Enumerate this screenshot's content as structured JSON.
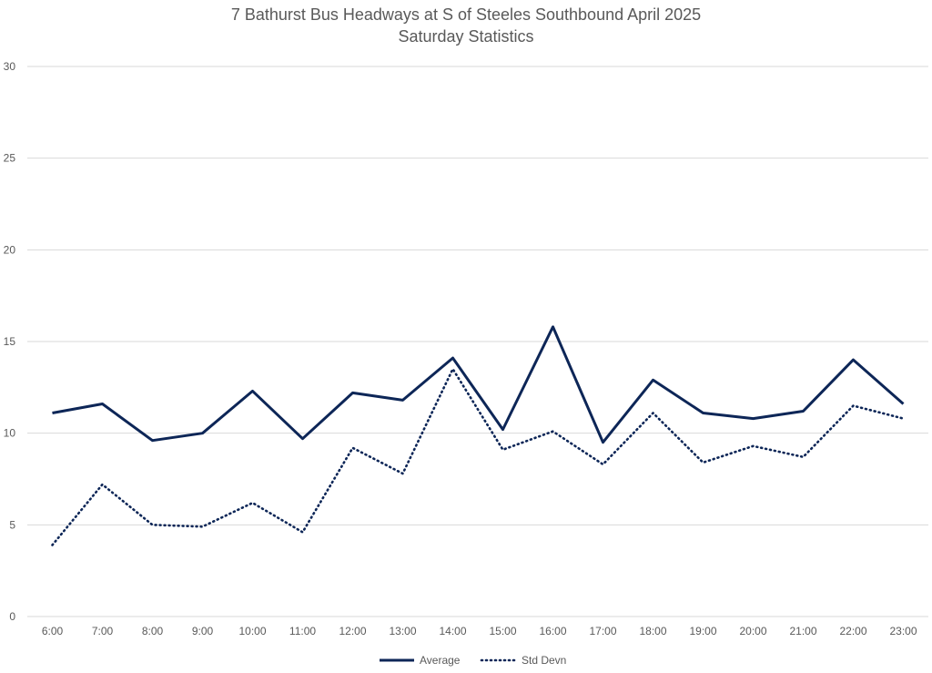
{
  "chart_data": {
    "type": "line",
    "title": "7 Bathurst Bus Headways at S of Steeles Southbound April 2025",
    "subtitle": "Saturday Statistics",
    "xlabel": "",
    "ylabel": "",
    "categories": [
      "6:00",
      "7:00",
      "8:00",
      "9:00",
      "10:00",
      "11:00",
      "12:00",
      "13:00",
      "14:00",
      "15:00",
      "16:00",
      "17:00",
      "18:00",
      "19:00",
      "20:00",
      "21:00",
      "22:00",
      "23:00"
    ],
    "ylim": [
      0,
      30
    ],
    "yticks": [
      0,
      5,
      10,
      15,
      20,
      25,
      30
    ],
    "grid": true,
    "legend": "bottom",
    "series": [
      {
        "name": "Average",
        "style": "solid",
        "color": "#0d2657",
        "values": [
          11.1,
          11.6,
          9.6,
          10.0,
          12.3,
          9.7,
          12.2,
          11.8,
          14.1,
          10.2,
          15.8,
          9.5,
          12.9,
          11.1,
          10.8,
          11.2,
          14.0,
          11.6
        ]
      },
      {
        "name": "Std Devn",
        "style": "dotted",
        "color": "#0d2657",
        "values": [
          3.9,
          7.2,
          5.0,
          4.9,
          6.2,
          4.6,
          9.2,
          7.8,
          13.5,
          9.1,
          10.1,
          8.3,
          11.1,
          8.4,
          9.3,
          8.7,
          11.5,
          10.8
        ]
      }
    ]
  }
}
